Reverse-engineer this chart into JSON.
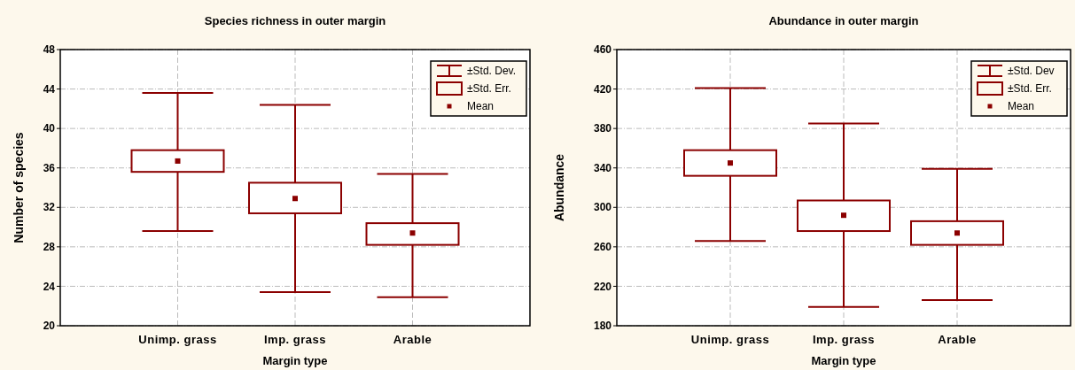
{
  "chart_data": [
    {
      "type": "box",
      "title": "Species richness in outer margin",
      "xlabel": "Margin type",
      "ylabel": "Number of species",
      "categories": [
        "Unimp. grass",
        "Imp. grass",
        "Arable"
      ],
      "color": "#8b0000",
      "boxes": [
        {
          "low": 29.6,
          "q1": 35.6,
          "median": 36.7,
          "q3": 37.8,
          "high": 43.6
        },
        {
          "low": 23.4,
          "q1": 31.4,
          "median": 32.9,
          "q3": 34.5,
          "high": 42.4
        },
        {
          "low": 22.9,
          "q1": 28.2,
          "median": 29.4,
          "q3": 30.4,
          "high": 35.4
        }
      ],
      "ylim": [
        20,
        48
      ],
      "yticks": [
        20,
        24,
        28,
        32,
        36,
        40,
        44,
        48
      ],
      "grid": true,
      "annotations": [
        "±Std. Dev.",
        "±Std. Err.",
        "Mean"
      ]
    },
    {
      "type": "box",
      "title": "Abundance in outer margin",
      "xlabel": "Margin type",
      "ylabel": "Abundance",
      "categories": [
        "Unimp. grass",
        "Imp. grass",
        "Arable"
      ],
      "color": "#8b0000",
      "boxes": [
        {
          "low": 266,
          "q1": 332,
          "median": 345,
          "q3": 358,
          "high": 421
        },
        {
          "low": 199,
          "q1": 276,
          "median": 292,
          "q3": 307,
          "high": 385
        },
        {
          "low": 206,
          "q1": 262,
          "median": 274,
          "q3": 286,
          "high": 339
        }
      ],
      "ylim": [
        180,
        460
      ],
      "yticks": [
        180,
        220,
        260,
        300,
        340,
        380,
        420,
        460
      ],
      "grid": true,
      "annotations": [
        "±Std. Dev",
        "±Std. Err.",
        "Mean"
      ]
    }
  ]
}
